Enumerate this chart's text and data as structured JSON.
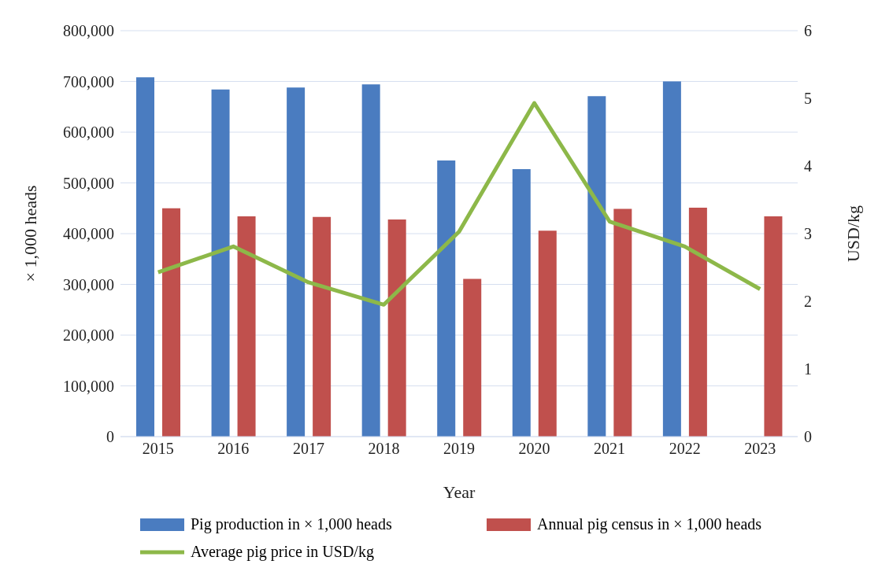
{
  "chart_data": {
    "type": "bar",
    "categories": [
      "2015",
      "2016",
      "2017",
      "2018",
      "2019",
      "2020",
      "2021",
      "2022",
      "2023"
    ],
    "xlabel": "Year",
    "ylabel": "× 1,000 heads",
    "y2label": "USD/kg",
    "series": [
      {
        "name": "Pig production in × 1,000 heads",
        "color": "#4a7cc0",
        "values": [
          708000,
          684000,
          688000,
          694000,
          544000,
          527000,
          671000,
          700000,
          null
        ]
      },
      {
        "name": "Annual pig census in × 1,000 heads",
        "color": "#c0504d",
        "values": [
          450000,
          434000,
          433000,
          428000,
          311000,
          406000,
          449000,
          451000,
          434000
        ]
      },
      {
        "name": "Average pig price in USD/kg",
        "type": "line",
        "axis": "y2",
        "color": "#8db849",
        "marker": "none",
        "values": [
          2.43,
          2.81,
          2.28,
          1.95,
          3.03,
          4.93,
          3.18,
          2.81,
          2.18
        ]
      }
    ],
    "ylim": [
      0,
      800000
    ],
    "yticks": [
      {
        "value": 0,
        "label": "0"
      },
      {
        "value": 100000,
        "label": "100,000"
      },
      {
        "value": 200000,
        "label": "200,000"
      },
      {
        "value": 300000,
        "label": "300,000"
      },
      {
        "value": 400000,
        "label": "400,000"
      },
      {
        "value": 500000,
        "label": "500,000"
      },
      {
        "value": 600000,
        "label": "600,000"
      },
      {
        "value": 700000,
        "label": "700,000"
      },
      {
        "value": 800000,
        "label": "800,000"
      }
    ],
    "y2lim": [
      0,
      6
    ],
    "y2ticks": [
      0,
      1,
      2,
      3,
      4,
      5,
      6
    ],
    "grid": "y",
    "legend": "bottom"
  }
}
